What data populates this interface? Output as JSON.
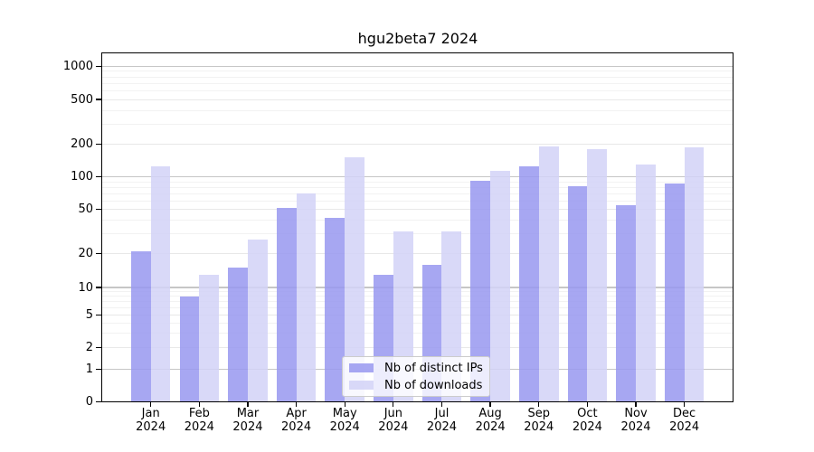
{
  "chart_data": {
    "type": "bar",
    "title": "hgu2beta7 2024",
    "categories": [
      "Jan",
      "Feb",
      "Mar",
      "Apr",
      "May",
      "Jun",
      "Jul",
      "Aug",
      "Sep",
      "Oct",
      "Nov",
      "Dec"
    ],
    "year_label": "2024",
    "series": [
      {
        "name": "Nb of distinct IPs",
        "color": "#9898f0",
        "values": [
          21,
          8,
          15,
          52,
          42,
          13,
          16,
          92,
          126,
          82,
          55,
          87
        ]
      },
      {
        "name": "Nb of downloads",
        "color": "#d2d2f7",
        "values": [
          124,
          13,
          27,
          70,
          152,
          32,
          32,
          113,
          189,
          178,
          130,
          185
        ]
      }
    ],
    "y_ticks": [
      0,
      1,
      2,
      5,
      10,
      20,
      50,
      100,
      200,
      500,
      1000
    ],
    "ylim": [
      0,
      1000
    ],
    "yscale": "log-like (labeled ticks 0,1,2,5,10,20,50,100,200,500,1000)",
    "grid": "horizontal major + log minor gridlines",
    "legend_position": "lower center inside plot"
  }
}
